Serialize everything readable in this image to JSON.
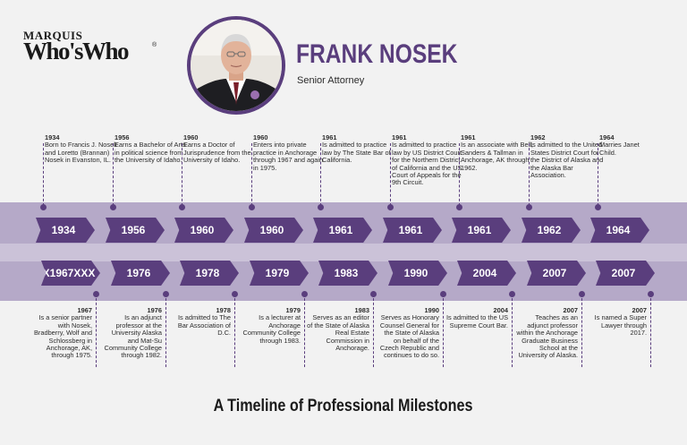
{
  "logo": {
    "line1": "MARQUIS",
    "line2": "Who'sWho",
    "reg": "®"
  },
  "profile": {
    "name": "FRANK NOSEK",
    "role": "Senior Attorney"
  },
  "colors": {
    "accent": "#5a3e7d",
    "band": "#b5a9c8",
    "background": "#f2f2f2"
  },
  "timeline": {
    "top_arrows": [
      "1934",
      "1956",
      "1960",
      "1960",
      "1961",
      "1961",
      "1961",
      "1962",
      "1964"
    ],
    "bottom_arrows": [
      "X1967XXX",
      "1976",
      "1978",
      "1979",
      "1983",
      "1990",
      "2004",
      "2007",
      "2007"
    ],
    "top_milestones": [
      {
        "year": "1934",
        "text": "Born to Francis J. Nosek and Loretto (Brannan) Nosek in Evanston, IL."
      },
      {
        "year": "1956",
        "text": "Earns a Bachelor of Arts in political science from the University of Idaho."
      },
      {
        "year": "1960",
        "text": "Earns a Doctor of Jurisprudence from the University of Idaho."
      },
      {
        "year": "1960",
        "text": "Enters into private practice in Anchorage through 1967 and again in 1975."
      },
      {
        "year": "1961",
        "text": "Is admitted to practice law by The State Bar of California."
      },
      {
        "year": "1961",
        "text": "Is admitted to practice law by US District Court for the Northern District of California and the US Court of Appeals for the 9th Circuit."
      },
      {
        "year": "1961",
        "text": "Is an associate with Bell, Sanders & Tallman in Anchorage, AK through 1962."
      },
      {
        "year": "1962",
        "text": "Is admitted to the United States District Court for the District of Alaska and the Alaska Bar Association."
      },
      {
        "year": "1964",
        "text": "Marries Janet Child."
      }
    ],
    "bottom_milestones": [
      {
        "year": "1967",
        "text": "Is a senior partner with Nosek, Bradberry, Wolf and Schlossberg in Anchorage, AK, through 1975."
      },
      {
        "year": "1976",
        "text": "Is an adjunct professor at the University Alaska and Mat-Su Community College through 1982."
      },
      {
        "year": "1978",
        "text": "Is admitted to The Bar Association of D.C."
      },
      {
        "year": "1979",
        "text": "Is a lecturer at Anchorage Community College through 1983."
      },
      {
        "year": "1983",
        "text": "Serves as an editor of the State of Alaska Real Estate Commission in Anchorage."
      },
      {
        "year": "1990",
        "text": "Serves as Honorary Counsel General for the State of Alaska on behalf of the Czech Republic and continues to do so."
      },
      {
        "year": "2004",
        "text": "Is admitted to the US Supreme Court Bar."
      },
      {
        "year": "2007",
        "text": "Teaches as an adjunct professor within the Anchorage Graduate Business School at the University of Alaska."
      },
      {
        "year": "2007",
        "text": "Is named a Super Lawyer through 2017."
      }
    ]
  },
  "footer": {
    "title": "A Timeline of Professional Milestones"
  }
}
